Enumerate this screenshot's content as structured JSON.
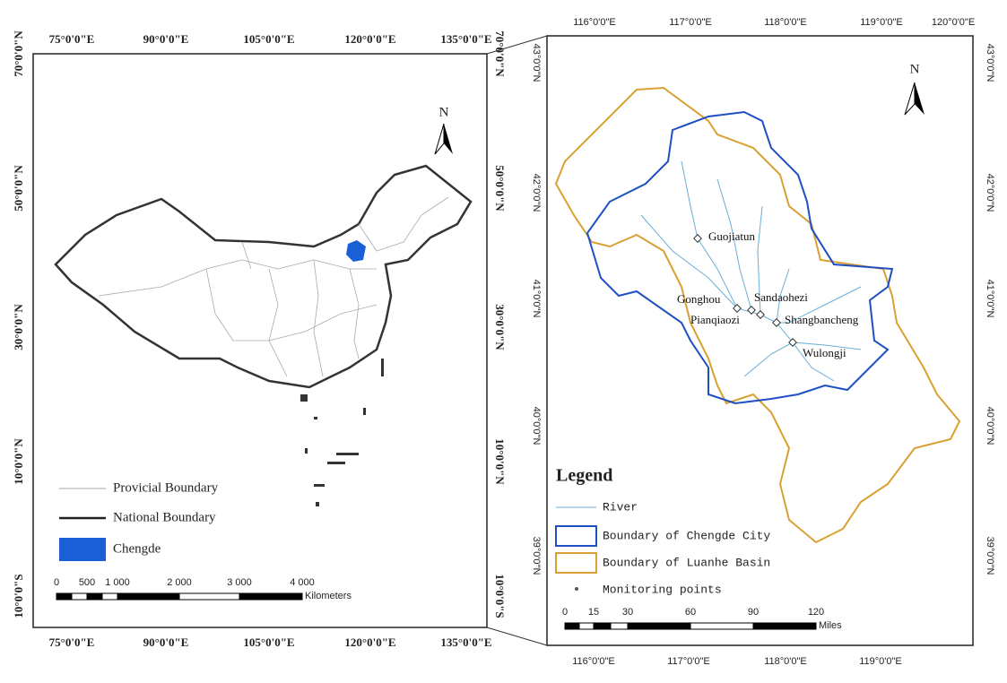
{
  "left_map": {
    "top_labels": [
      "75°0'0\"E",
      "90°0'0\"E",
      "105°0'0\"E",
      "120°0'0\"E",
      "135°0'0\"E"
    ],
    "bottom_labels": [
      "75°0'0\"E",
      "90°0'0\"E",
      "105°0'0\"E",
      "120°0'0\"E",
      "135°0'0\"E"
    ],
    "left_labels": [
      "70°0'0\"N",
      "50°0'0\"N",
      "30°0'0\"N",
      "10°0'0\"N",
      "10°0'0\"S"
    ],
    "right_labels": [
      "70°0'0\"N",
      "50°0'0\"N",
      "30°0'0\"N",
      "10°0'0\"N",
      "10°0'0\"S"
    ],
    "north": "N",
    "legend": [
      "Provicial Boundary",
      "National Boundary",
      "Chengde"
    ],
    "scale": {
      "labels": [
        "0",
        "500",
        "1 000",
        "2 000",
        "3 000",
        "4 000"
      ],
      "unit": "Kilometers"
    }
  },
  "right_map": {
    "top_labels": [
      "116°0'0\"E",
      "117°0'0\"E",
      "118°0'0\"E",
      "119°0'0\"E",
      "120°0'0\"E"
    ],
    "bottom_labels": [
      "116°0'0\"E",
      "117°0'0\"E",
      "118°0'0\"E",
      "119°0'0\"E"
    ],
    "left_labels": [
      "43°0'0\"N",
      "42°0'0\"N",
      "41°0'0\"N",
      "40°0'0\"N",
      "39°0'0\"N"
    ],
    "right_labels": [
      "43°0'0\"N",
      "42°0'0\"N",
      "41°0'0\"N",
      "40°0'0\"N",
      "39°0'0\"N"
    ],
    "north": "N",
    "stations": [
      "Guojiatun",
      "Gonghou",
      "Sandaohezi",
      "Pianqiaozi",
      "Shangbancheng",
      "Wulongji"
    ],
    "legend": {
      "title": "Legend",
      "items": [
        "River",
        "Boundary of Chengde City",
        "Boundary of Luanhe Basin",
        "Monitoring points"
      ]
    },
    "scale": {
      "labels": [
        "0",
        "15",
        "30",
        "60",
        "90",
        "120"
      ],
      "unit": "Miles"
    }
  }
}
